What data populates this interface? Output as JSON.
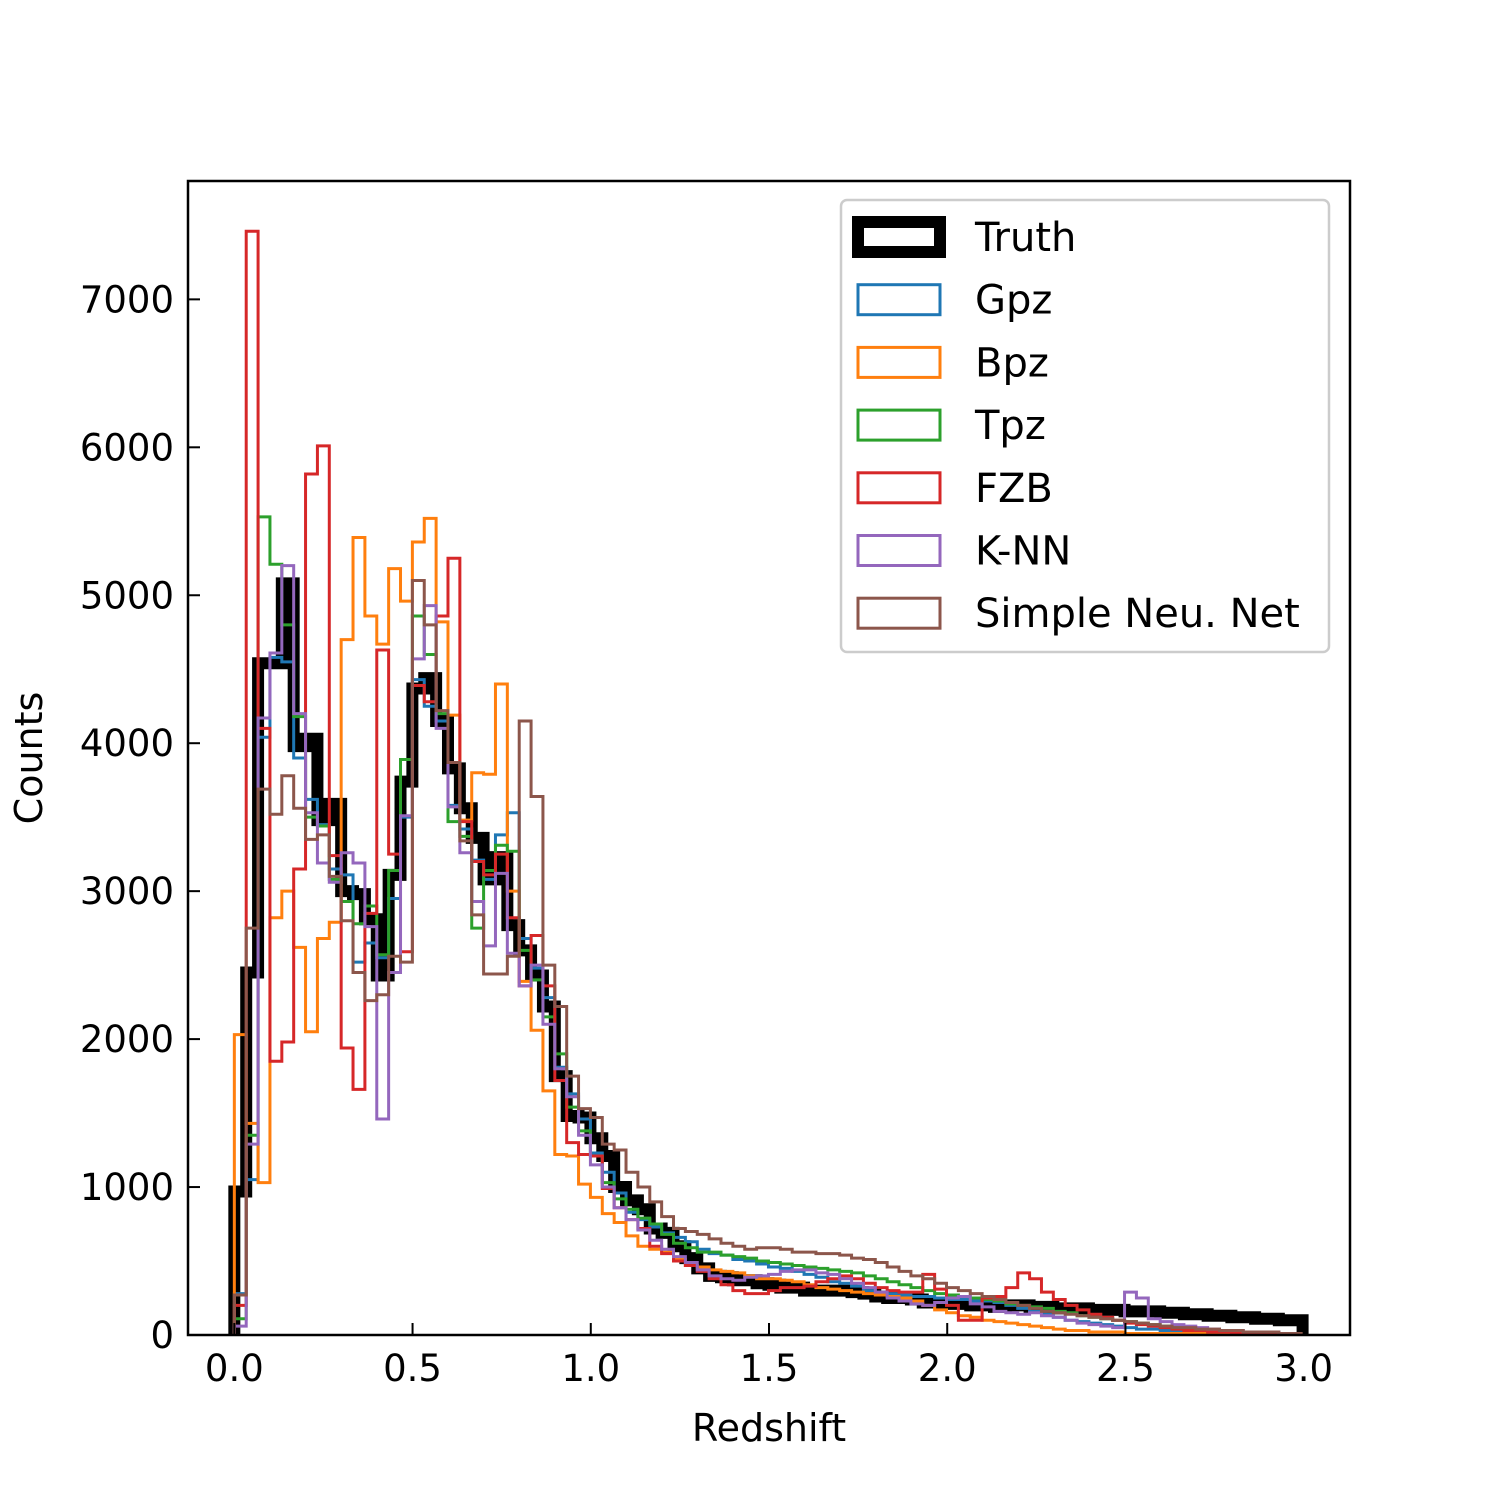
{
  "chart_data": {
    "type": "histogram",
    "title": "",
    "xlabel": "Redshift",
    "ylabel": "Counts",
    "xlim": [
      -0.13,
      3.13
    ],
    "ylim": [
      0,
      7800
    ],
    "x_ticks": [
      0.0,
      0.5,
      1.0,
      1.5,
      2.0,
      2.5,
      3.0
    ],
    "x_tick_labels": [
      "0.0",
      "0.5",
      "1.0",
      "1.5",
      "2.0",
      "2.5",
      "3.0"
    ],
    "y_ticks": [
      0,
      1000,
      2000,
      3000,
      4000,
      5000,
      6000,
      7000
    ],
    "y_tick_labels": [
      "0",
      "1000",
      "2000",
      "3000",
      "4000",
      "5000",
      "6000",
      "7000"
    ],
    "grid": false,
    "legend_position": "top-right",
    "bin_start": 0.0,
    "bin_width": 0.0333,
    "series": [
      {
        "name": "Truth",
        "color": "#000000",
        "linewidth": 12,
        "values": [
          970,
          2450,
          4540,
          4540,
          5080,
          3980,
          4030,
          3480,
          3590,
          3000,
          2980,
          2810,
          2430,
          3110,
          3740,
          4370,
          4440,
          4150,
          3830,
          3560,
          3360,
          3080,
          3230,
          2770,
          2600,
          2430,
          2220,
          1750,
          1480,
          1470,
          1330,
          1210,
          1000,
          910,
          850,
          720,
          690,
          600,
          520,
          450,
          400,
          390,
          370,
          370,
          350,
          340,
          320,
          320,
          300,
          300,
          300,
          300,
          290,
          280,
          260,
          250,
          250,
          240,
          220,
          220,
          210,
          210,
          200,
          200,
          190,
          200,
          200,
          190,
          190,
          180,
          180,
          180,
          170,
          170,
          170,
          160,
          160,
          160,
          150,
          150,
          140,
          140,
          130,
          130,
          120,
          120,
          110,
          110,
          100,
          100
        ]
      },
      {
        "name": "Gpz",
        "color": "#1f77b4",
        "linewidth": 3,
        "values": [
          280,
          1050,
          4040,
          4580,
          4550,
          3900,
          3620,
          3450,
          3150,
          3110,
          2520,
          2650,
          2550,
          2950,
          3500,
          4430,
          4250,
          4150,
          3580,
          3420,
          3210,
          3080,
          3380,
          3530,
          2680,
          2480,
          2280,
          1810,
          1630,
          1460,
          1230,
          1100,
          960,
          830,
          780,
          730,
          690,
          660,
          630,
          580,
          550,
          540,
          510,
          500,
          480,
          460,
          450,
          430,
          410,
          390,
          360,
          350,
          330,
          300,
          290,
          280,
          270,
          260,
          260,
          250,
          240,
          240,
          230,
          230,
          220,
          200,
          180,
          160,
          140,
          120,
          100,
          90,
          80,
          70,
          60,
          50,
          40,
          40,
          30,
          30,
          20,
          20,
          20,
          10,
          10,
          10,
          10,
          10,
          10,
          10
        ]
      },
      {
        "name": "Bpz",
        "color": "#ff7f0e",
        "linewidth": 3,
        "values": [
          2030,
          1430,
          1030,
          2820,
          3000,
          2620,
          2050,
          2680,
          2790,
          4700,
          5390,
          4860,
          4670,
          5180,
          4960,
          5360,
          5520,
          4820,
          4190,
          3480,
          3800,
          3790,
          4400,
          3000,
          2390,
          2060,
          1650,
          1220,
          1210,
          1020,
          930,
          820,
          760,
          670,
          600,
          580,
          560,
          510,
          470,
          460,
          440,
          430,
          420,
          400,
          380,
          380,
          370,
          360,
          340,
          320,
          310,
          300,
          290,
          280,
          270,
          260,
          250,
          230,
          200,
          170,
          150,
          130,
          120,
          100,
          90,
          80,
          70,
          60,
          50,
          40,
          30,
          30,
          20,
          20,
          20,
          10,
          10,
          10,
          10,
          10,
          10,
          10,
          10,
          10,
          10,
          10,
          10,
          10,
          10,
          10
        ]
      },
      {
        "name": "Tpz",
        "color": "#2ca02c",
        "linewidth": 3,
        "values": [
          110,
          1350,
          5530,
          5210,
          4800,
          4180,
          3500,
          3440,
          3080,
          2930,
          2780,
          2900,
          2570,
          3140,
          3890,
          4860,
          4600,
          4200,
          3470,
          3370,
          2750,
          3140,
          3310,
          3270,
          2600,
          2400,
          2150,
          1900,
          1540,
          1380,
          1210,
          1030,
          920,
          850,
          790,
          750,
          680,
          620,
          590,
          560,
          560,
          540,
          530,
          520,
          500,
          490,
          480,
          470,
          460,
          450,
          440,
          430,
          420,
          400,
          380,
          360,
          340,
          320,
          300,
          280,
          270,
          260,
          250,
          240,
          230,
          210,
          200,
          190,
          180,
          160,
          150,
          130,
          120,
          110,
          100,
          90,
          80,
          70,
          60,
          50,
          40,
          40,
          30,
          30,
          20,
          20,
          20,
          10,
          10,
          10
        ]
      },
      {
        "name": "FZB",
        "color": "#d62728",
        "linewidth": 3,
        "values": [
          200,
          7460,
          4100,
          1850,
          1980,
          3150,
          5820,
          6010,
          3240,
          1940,
          1660,
          2850,
          4630,
          3250,
          2590,
          4390,
          4280,
          4860,
          5250,
          3470,
          3200,
          3110,
          3250,
          2820,
          2360,
          2700,
          2360,
          1720,
          1300,
          1220,
          1210,
          990,
          860,
          780,
          720,
          600,
          550,
          500,
          470,
          430,
          380,
          340,
          300,
          280,
          280,
          300,
          320,
          320,
          330,
          360,
          380,
          400,
          380,
          350,
          320,
          300,
          290,
          290,
          410,
          310,
          200,
          100,
          100,
          250,
          260,
          320,
          420,
          380,
          290,
          240,
          200,
          170,
          140,
          120,
          100,
          80,
          70,
          60,
          50,
          40,
          30,
          30,
          20,
          20,
          10,
          10,
          10,
          10,
          10,
          10
        ]
      },
      {
        "name": "K-NN",
        "color": "#9467bd",
        "linewidth": 3,
        "values": [
          60,
          1290,
          4170,
          4610,
          5200,
          4200,
          3530,
          3190,
          3060,
          3260,
          3190,
          2760,
          1460,
          2450,
          3510,
          4570,
          4930,
          4100,
          3570,
          3260,
          2930,
          2630,
          3120,
          2580,
          2360,
          2500,
          2100,
          1800,
          1610,
          1350,
          1150,
          1000,
          860,
          780,
          710,
          640,
          580,
          530,
          490,
          440,
          400,
          380,
          370,
          390,
          400,
          410,
          430,
          440,
          440,
          420,
          410,
          380,
          350,
          320,
          290,
          250,
          230,
          210,
          200,
          220,
          250,
          260,
          210,
          190,
          160,
          150,
          140,
          150,
          130,
          120,
          100,
          80,
          70,
          60,
          50,
          290,
          250,
          110,
          90,
          70,
          60,
          50,
          40,
          30,
          30,
          20,
          20,
          20,
          10,
          10
        ]
      },
      {
        "name": "Simple Neu. Net",
        "color": "#8c564b",
        "linewidth": 3,
        "values": [
          270,
          2750,
          3690,
          3520,
          3780,
          3560,
          3350,
          3380,
          3100,
          2800,
          2450,
          2260,
          2300,
          2560,
          2520,
          5100,
          4800,
          4220,
          3870,
          3340,
          2840,
          2440,
          2440,
          2560,
          4150,
          3640,
          2500,
          2220,
          1750,
          1530,
          1470,
          1290,
          1250,
          1100,
          1000,
          900,
          800,
          720,
          700,
          680,
          650,
          620,
          600,
          580,
          590,
          590,
          580,
          560,
          560,
          550,
          550,
          540,
          520,
          510,
          490,
          460,
          430,
          400,
          380,
          350,
          320,
          300,
          280,
          260,
          240,
          220,
          200,
          180,
          160,
          150,
          140,
          130,
          120,
          110,
          100,
          90,
          80,
          70,
          60,
          50,
          50,
          40,
          40,
          30,
          30,
          20,
          20,
          20,
          10,
          10
        ]
      }
    ]
  }
}
